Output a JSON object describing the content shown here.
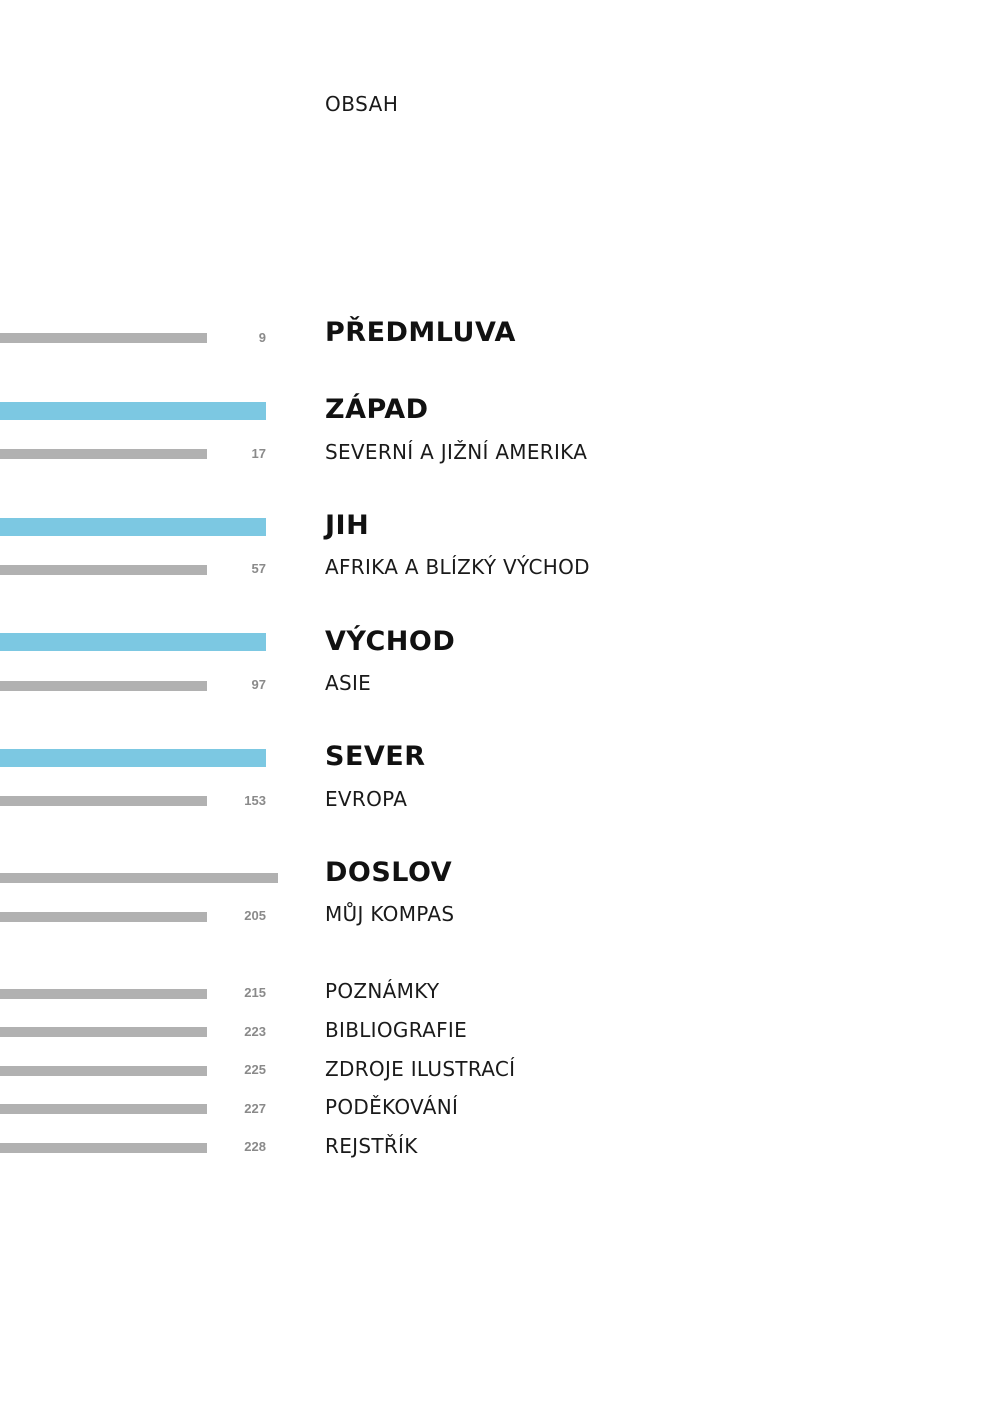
{
  "title": "OBSAH",
  "colors": {
    "accent": "#7cc8e2",
    "bar_grey": "#b1b1b1",
    "page_number": "#8a8a8a"
  },
  "entries": [
    {
      "heading": "PŘEDMLUVA",
      "subtitle": "",
      "page": "9"
    },
    {
      "heading": "ZÁPAD",
      "subtitle": "SEVERNÍ A JIŽNÍ AMERIKA",
      "page": "17"
    },
    {
      "heading": "JIH",
      "subtitle": "AFRIKA A BLÍZKÝ VÝCHOD",
      "page": "57"
    },
    {
      "heading": "VÝCHOD",
      "subtitle": "ASIE",
      "page": "97"
    },
    {
      "heading": "SEVER",
      "subtitle": "EVROPA",
      "page": "153"
    },
    {
      "heading": "DOSLOV",
      "subtitle": "MŮJ KOMPAS",
      "page": "205"
    }
  ],
  "back_matter": [
    {
      "label": "POZNÁMKY",
      "page": "215"
    },
    {
      "label": "BIBLIOGRAFIE",
      "page": "223"
    },
    {
      "label": "ZDROJE ILUSTRACÍ",
      "page": "225"
    },
    {
      "label": "PODĚKOVÁNÍ",
      "page": "227"
    },
    {
      "label": "REJSTŘÍK",
      "page": "228"
    }
  ]
}
